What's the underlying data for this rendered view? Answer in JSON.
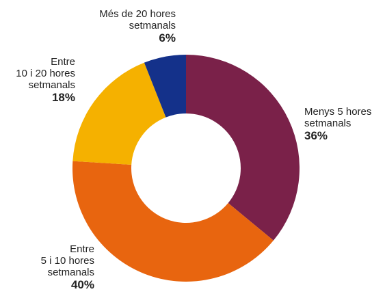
{
  "chart_data": {
    "type": "donut",
    "categories": [
      "Menys 5 hores\nsetmanals",
      "Entre\n5 i 10 hores\nsetmanals",
      "Entre\n10 i 20 hores\nsetmanals",
      "Més de 20 hores\nsetmanals"
    ],
    "values": [
      36,
      40,
      18,
      6
    ],
    "value_labels": [
      "36%",
      "40%",
      "18%",
      "6%"
    ],
    "colors": [
      "#7a2149",
      "#e8650f",
      "#f5b100",
      "#14318a"
    ]
  }
}
